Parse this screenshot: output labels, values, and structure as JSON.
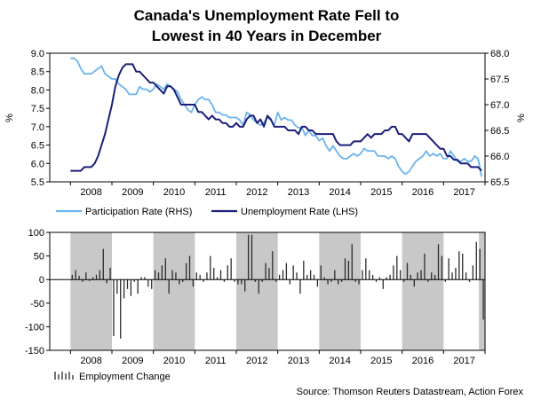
{
  "title_lines": [
    "Canada's Unemployment Rate Fell to",
    "Lowest in 40 Years in December"
  ],
  "source": "Source: Thomson Reuters Datastream, Action Forex",
  "colors": {
    "unemployment": "#1b1f7a",
    "participation": "#6cb4ec",
    "bars": "#2b2b2b",
    "shade": "#c8c8c8",
    "axis": "#000000",
    "zero_line": "#000000"
  },
  "chart_data": [
    {
      "type": "line",
      "title": "Canada's Unemployment Rate Fell to Lowest in 40 Years in December",
      "xlabel": "",
      "ylabel_left": "%",
      "ylabel_right": "%",
      "x_range": [
        2007.5,
        2018.0
      ],
      "year_labels": [
        "2008",
        "2009",
        "2010",
        "2011",
        "2012",
        "2013",
        "2014",
        "2015",
        "2016",
        "2017"
      ],
      "y_left": {
        "lim": [
          5.5,
          9.0
        ],
        "ticks": [
          "5.5",
          "6.0",
          "6.5",
          "7.0",
          "7.5",
          "8.0",
          "8.5",
          "9.0"
        ]
      },
      "y_right": {
        "lim": [
          65.5,
          68.0
        ],
        "ticks": [
          "65.5",
          "66.0",
          "66.5",
          "67.0",
          "67.5",
          "68.0"
        ]
      },
      "legend": [
        "Participation Rate (RHS)",
        "Unemployment Rate (LHS)"
      ],
      "series": [
        {
          "name": "Participation Rate (RHS)",
          "axis": "right",
          "values": [
            67.9,
            67.9,
            67.85,
            67.7,
            67.6,
            67.6,
            67.6,
            67.65,
            67.7,
            67.75,
            67.6,
            67.55,
            67.5,
            67.5,
            67.4,
            67.35,
            67.3,
            67.2,
            67.2,
            67.2,
            67.35,
            67.3,
            67.3,
            67.25,
            67.3,
            67.4,
            67.35,
            67.3,
            67.4,
            67.35,
            67.3,
            67.25,
            67.1,
            67.0,
            66.9,
            66.85,
            67.0,
            67.1,
            67.15,
            67.1,
            67.1,
            67.0,
            66.85,
            66.85,
            66.8,
            66.8,
            66.75,
            66.75,
            66.75,
            66.7,
            66.6,
            66.85,
            66.8,
            66.7,
            66.65,
            66.6,
            66.65,
            66.75,
            66.7,
            66.6,
            66.85,
            66.7,
            66.75,
            66.7,
            66.7,
            66.6,
            66.55,
            66.55,
            66.4,
            66.5,
            66.4,
            66.4,
            66.3,
            66.35,
            66.2,
            66.1,
            66.2,
            66.1,
            66.0,
            65.95,
            65.95,
            66.0,
            66.05,
            66.0,
            66.05,
            66.15,
            66.1,
            66.1,
            66.1,
            66.0,
            66.0,
            66.0,
            65.95,
            66.0,
            65.95,
            65.8,
            65.7,
            65.65,
            65.7,
            65.8,
            65.9,
            65.95,
            66.0,
            66.1,
            66.0,
            66.05,
            66.0,
            66.05,
            65.95,
            65.95,
            66.1,
            66.0,
            65.9,
            65.9,
            65.95,
            65.9,
            65.9,
            66.0,
            65.95,
            65.6
          ]
        },
        {
          "name": "Unemployment Rate (LHS)",
          "axis": "left",
          "values": [
            5.8,
            5.8,
            5.8,
            5.8,
            5.9,
            5.9,
            5.9,
            6.0,
            6.2,
            6.5,
            6.8,
            7.2,
            7.6,
            8.1,
            8.4,
            8.6,
            8.7,
            8.7,
            8.7,
            8.5,
            8.5,
            8.4,
            8.3,
            8.2,
            8.2,
            8.1,
            8.0,
            7.9,
            8.1,
            8.1,
            8.0,
            7.8,
            7.6,
            7.6,
            7.6,
            7.6,
            7.6,
            7.4,
            7.4,
            7.3,
            7.2,
            7.3,
            7.2,
            7.2,
            7.1,
            7.1,
            7.0,
            7.0,
            7.1,
            7.0,
            7.0,
            7.2,
            7.3,
            7.3,
            7.1,
            7.2,
            7.0,
            7.3,
            7.2,
            7.0,
            7.0,
            7.0,
            7.0,
            6.9,
            6.9,
            6.9,
            6.8,
            7.0,
            7.0,
            6.9,
            6.9,
            6.8,
            6.8,
            6.8,
            6.8,
            6.8,
            6.8,
            6.6,
            6.5,
            6.5,
            6.5,
            6.5,
            6.6,
            6.6,
            6.6,
            6.7,
            6.8,
            6.7,
            6.8,
            6.8,
            6.8,
            6.9,
            6.9,
            7.0,
            7.0,
            6.8,
            6.8,
            6.7,
            6.6,
            6.8,
            6.8,
            6.8,
            6.8,
            6.8,
            6.7,
            6.6,
            6.5,
            6.4,
            6.4,
            6.2,
            6.2,
            6.1,
            6.1,
            6.0,
            6.0,
            6.0,
            5.9,
            5.9,
            5.9,
            5.8
          ]
        }
      ]
    },
    {
      "type": "bar",
      "title": "",
      "xlabel": "",
      "ylabel": "",
      "x_range": [
        2007.5,
        2018.0
      ],
      "ylim": [
        -150,
        100
      ],
      "y_ticks": [
        "-150",
        "-100",
        "-50",
        "0",
        "50",
        "100"
      ],
      "year_labels": [
        "2008",
        "2009",
        "2010",
        "2011",
        "2012",
        "2013",
        "2014",
        "2015",
        "2016",
        "2017"
      ],
      "shaded_years": [
        2008,
        2010,
        2012,
        2014,
        2016
      ],
      "legend": [
        "Employment Change"
      ],
      "series": [
        {
          "name": "Employment Change",
          "values": [
            10,
            20,
            8,
            -5,
            15,
            -3,
            5,
            10,
            20,
            65,
            -8,
            25,
            -120,
            -30,
            -125,
            -40,
            -20,
            -35,
            -5,
            -30,
            5,
            5,
            -15,
            -20,
            20,
            15,
            30,
            45,
            -30,
            20,
            15,
            -10,
            -5,
            35,
            50,
            -15,
            15,
            10,
            -5,
            15,
            50,
            25,
            5,
            20,
            -5,
            30,
            45,
            -5,
            -10,
            -10,
            -25,
            95,
            95,
            -5,
            -30,
            -5,
            35,
            25,
            60,
            -5,
            10,
            20,
            35,
            -10,
            30,
            15,
            -30,
            40,
            10,
            20,
            10,
            -15,
            30,
            5,
            -10,
            -5,
            20,
            -10,
            -5,
            45,
            40,
            75,
            -5,
            -10,
            20,
            45,
            20,
            10,
            -5,
            5,
            -20,
            5,
            10,
            30,
            50,
            20,
            -5,
            35,
            10,
            -15,
            15,
            20,
            55,
            -5,
            15,
            10,
            75,
            50,
            -5,
            45,
            15,
            25,
            60,
            55,
            15,
            -5,
            30,
            80,
            65,
            -85
          ]
        }
      ]
    }
  ]
}
